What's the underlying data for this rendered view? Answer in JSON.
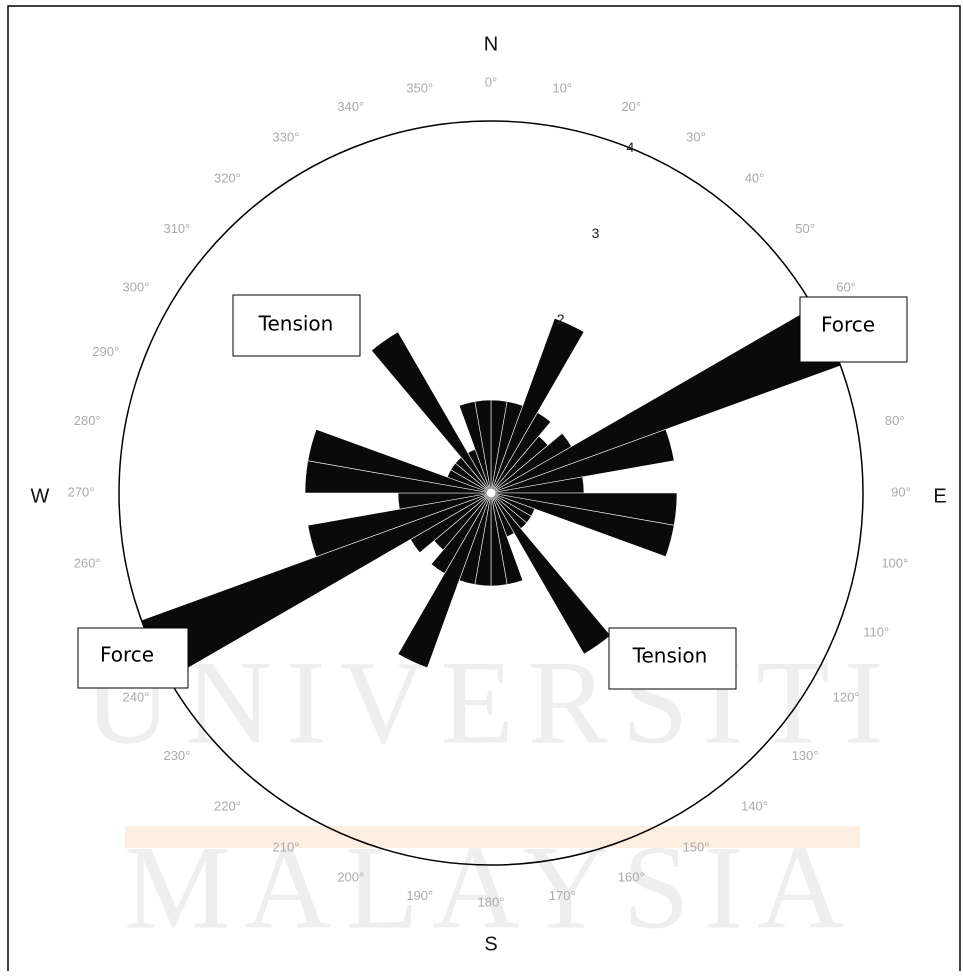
{
  "chart_data": {
    "type": "rose",
    "watermark": [
      "UNIVERSITI",
      "MALAYSIA"
    ],
    "compass": [
      "N",
      "E",
      "S",
      "W"
    ],
    "sector_width": 10,
    "values": [
      1,
      1,
      2,
      1,
      0.8,
      1,
      4,
      2,
      1,
      2,
      2,
      0.5,
      0.5,
      0.5,
      2,
      0.5,
      1,
      1,
      1,
      1,
      2,
      1,
      0.8,
      1,
      4,
      2,
      1,
      2,
      2,
      0.5,
      0.5,
      0.5,
      2,
      0.5,
      1,
      1
    ],
    "color": "#0a0a0a",
    "rlim": [
      0,
      4
    ],
    "rticks": [
      2,
      3,
      4
    ],
    "angle_ticks": [
      {
        "value": 0,
        "label": "0°"
      },
      {
        "value": 10,
        "label": "10°"
      },
      {
        "value": 20,
        "label": "20°"
      },
      {
        "value": 30,
        "label": "30°"
      },
      {
        "value": 40,
        "label": "40°"
      },
      {
        "value": 50,
        "label": "50°"
      },
      {
        "value": 60,
        "label": "60°"
      },
      {
        "value": 80,
        "label": "80°"
      },
      {
        "value": 90,
        "label": "90°"
      },
      {
        "value": 100,
        "label": "100°"
      },
      {
        "value": 110,
        "label": "110°"
      },
      {
        "value": 120,
        "label": "120°"
      },
      {
        "value": 130,
        "label": "130°"
      },
      {
        "value": 140,
        "label": "140°"
      },
      {
        "value": 150,
        "label": "150°"
      },
      {
        "value": 160,
        "label": "160°"
      },
      {
        "value": 170,
        "label": "170°"
      },
      {
        "value": 180,
        "label": "180°"
      },
      {
        "value": 190,
        "label": "190°"
      },
      {
        "value": 200,
        "label": "200°"
      },
      {
        "value": 210,
        "label": "210°"
      },
      {
        "value": 220,
        "label": "220°"
      },
      {
        "value": 230,
        "label": "230°"
      },
      {
        "value": 240,
        "label": "240°"
      },
      {
        "value": 260,
        "label": "260°"
      },
      {
        "value": 270,
        "label": "270°"
      },
      {
        "value": 280,
        "label": "280°"
      },
      {
        "value": 290,
        "label": "290°"
      },
      {
        "value": 300,
        "label": "300°"
      },
      {
        "value": 310,
        "label": "310°"
      },
      {
        "value": 320,
        "label": "320°"
      },
      {
        "value": 330,
        "label": "330°"
      },
      {
        "value": 340,
        "label": "340°"
      },
      {
        "value": 350,
        "label": "350°"
      }
    ],
    "annotations": [
      "Tension",
      "Force",
      "Force",
      "Tension"
    ]
  }
}
